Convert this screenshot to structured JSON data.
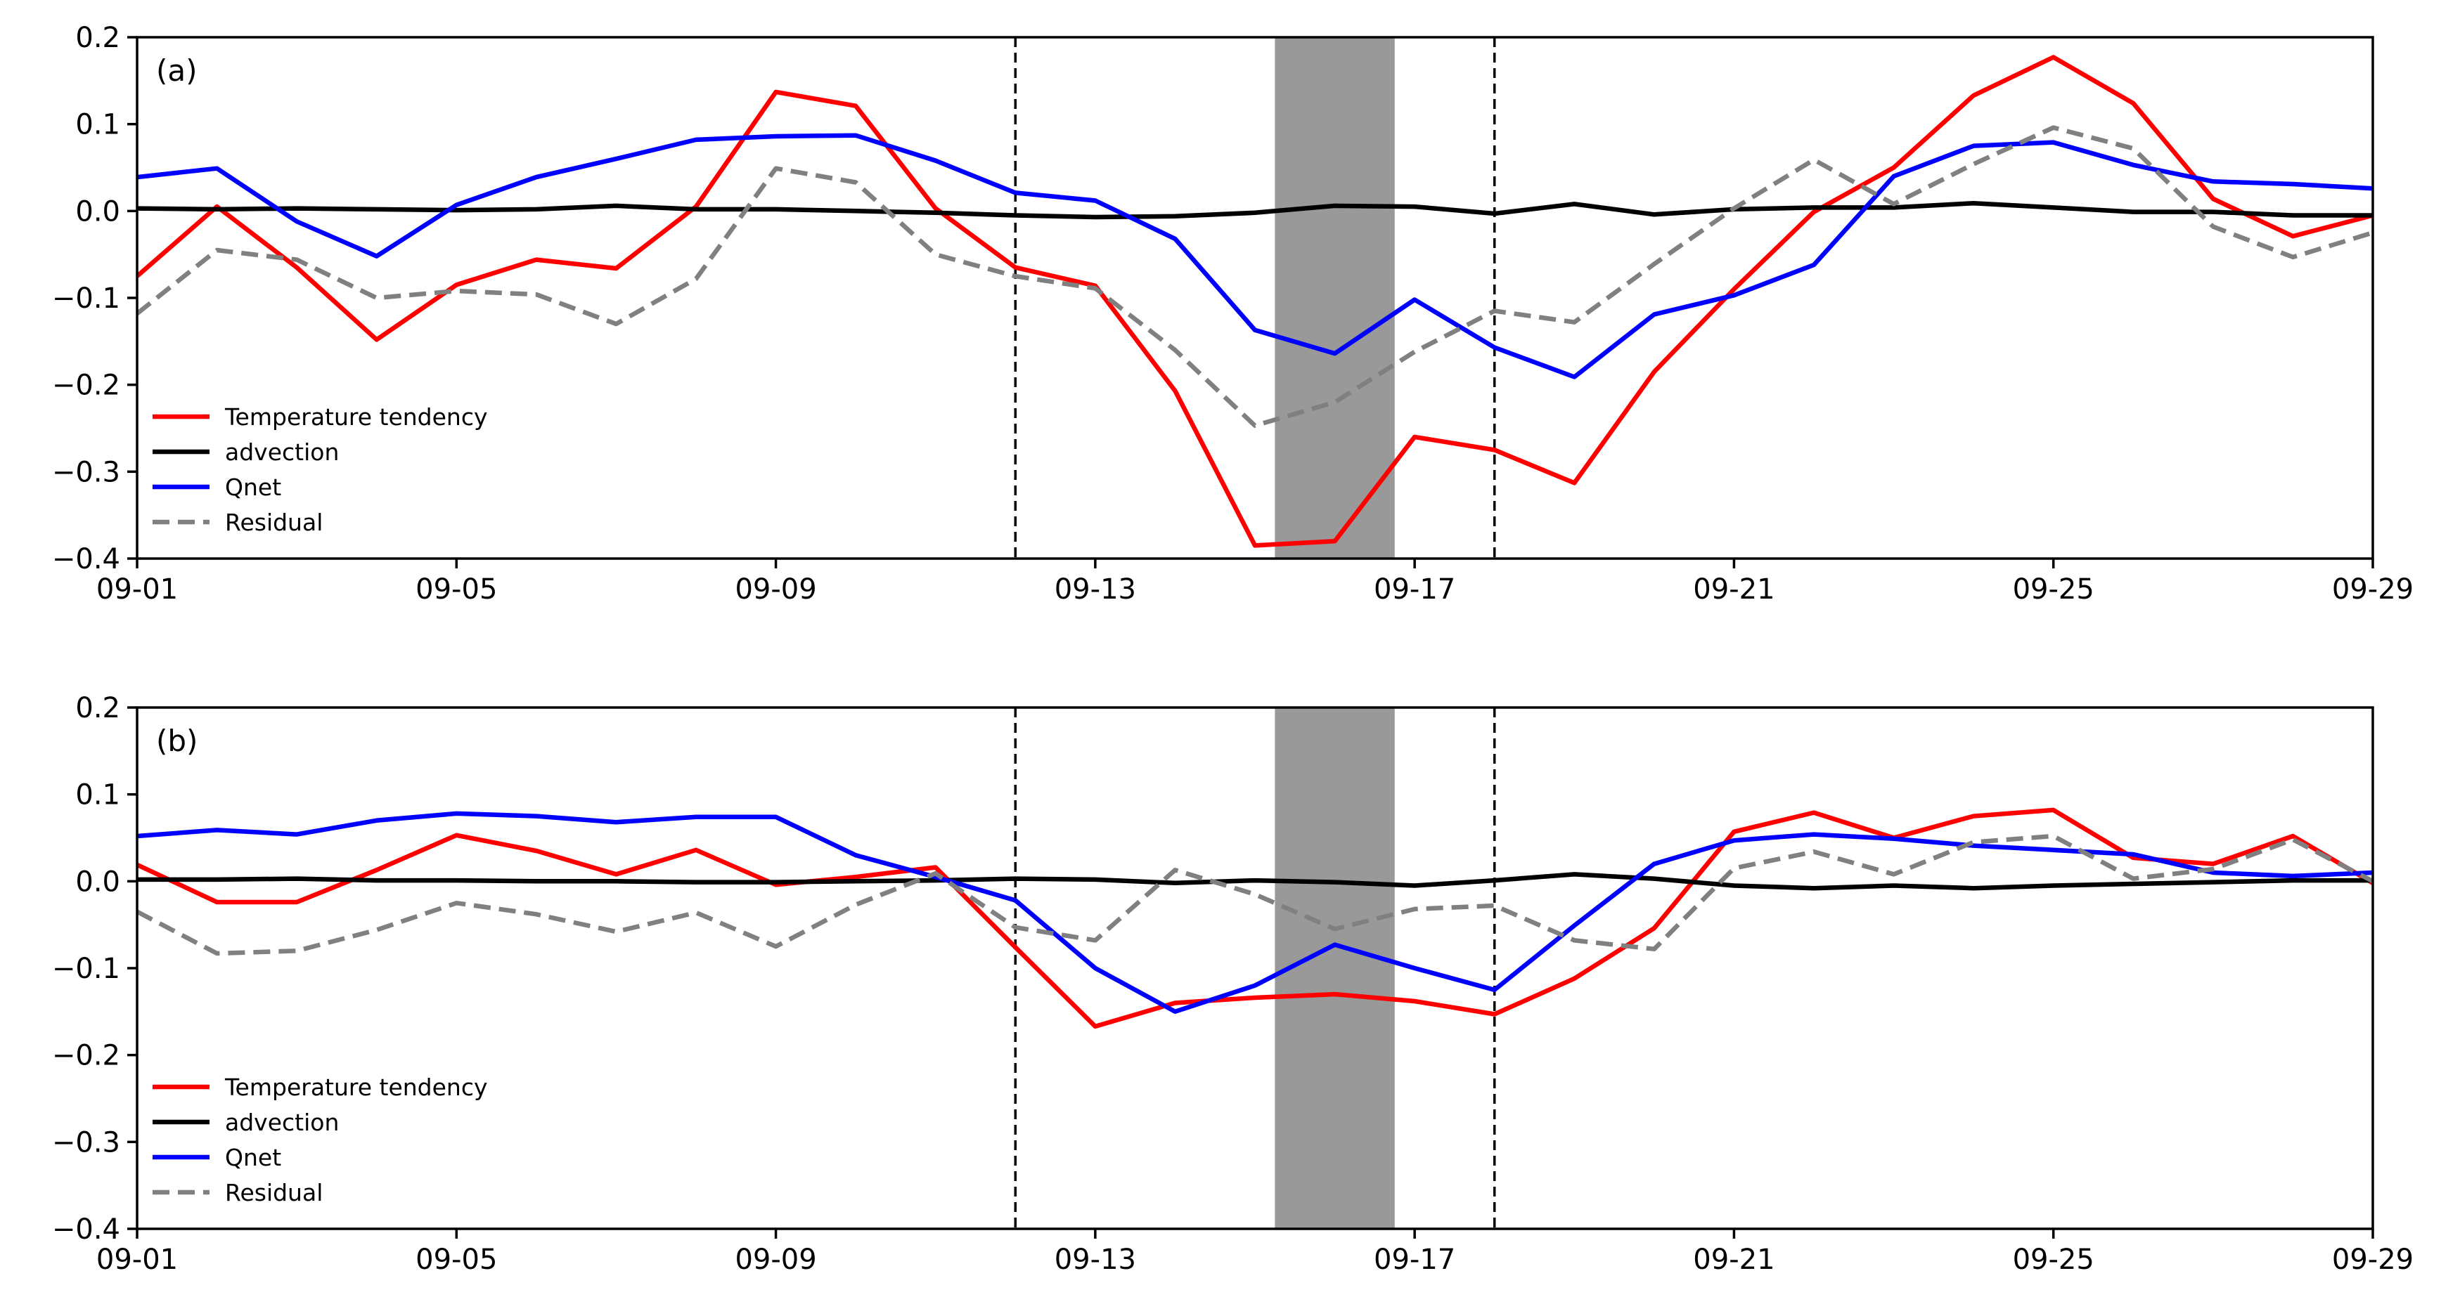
{
  "chart_data": [
    {
      "type": "line",
      "panel_label": "(a)",
      "title": "",
      "xlabel": "",
      "ylabel": "",
      "x": [
        "09-01",
        "09-02",
        "09-03",
        "09-04",
        "09-05",
        "09-06",
        "09-07",
        "09-08",
        "09-09",
        "09-10",
        "09-11",
        "09-12",
        "09-13",
        "09-14",
        "09-15",
        "09-16",
        "09-17",
        "09-18",
        "09-19",
        "09-20",
        "09-21",
        "09-22",
        "09-23",
        "09-24",
        "09-25",
        "09-26",
        "09-27",
        "09-28",
        "09-29"
      ],
      "xticks": [
        "09-01",
        "09-05",
        "09-09",
        "09-13",
        "09-17",
        "09-21",
        "09-25",
        "09-29"
      ],
      "yticks": [
        "0.2",
        "0.1",
        "0.0",
        "−0.1",
        "−0.2",
        "−0.3",
        "−0.4"
      ],
      "ylim": [
        -0.4,
        0.2
      ],
      "vlines": [
        "09-12",
        "09-18"
      ],
      "shaded_span": [
        "09-15.25",
        "09-16.75"
      ],
      "legend_loc": "lower-left",
      "series": [
        {
          "name": "Temperature tendency",
          "color": "#ff0000",
          "dash": "solid",
          "values": [
            -0.075,
            0.005,
            -0.065,
            -0.148,
            -0.085,
            -0.056,
            -0.066,
            0.005,
            0.137,
            0.121,
            0.003,
            -0.065,
            -0.086,
            -0.207,
            -0.385,
            -0.38,
            -0.26,
            -0.275,
            -0.313,
            -0.185,
            -0.09,
            -0.001,
            0.05,
            0.133,
            0.177,
            0.124,
            0.014,
            -0.029,
            -0.005
          ]
        },
        {
          "name": "advection",
          "color": "#000000",
          "dash": "solid",
          "values": [
            0.003,
            0.002,
            0.003,
            0.002,
            0.001,
            0.002,
            0.006,
            0.002,
            0.002,
            0.0,
            -0.002,
            -0.005,
            -0.007,
            -0.006,
            -0.002,
            0.006,
            0.005,
            -0.003,
            0.008,
            -0.004,
            0.002,
            0.004,
            0.004,
            0.009,
            0.004,
            -0.001,
            -0.001,
            -0.005,
            -0.005
          ]
        },
        {
          "name": "Qnet",
          "color": "#0000ff",
          "dash": "solid",
          "values": [
            0.039,
            0.049,
            -0.012,
            -0.052,
            0.007,
            0.039,
            0.06,
            0.082,
            0.086,
            0.087,
            0.058,
            0.021,
            0.012,
            -0.032,
            -0.137,
            -0.164,
            -0.102,
            -0.157,
            -0.191,
            -0.119,
            -0.097,
            -0.062,
            0.04,
            0.075,
            0.079,
            0.053,
            0.034,
            0.031,
            0.026
          ]
        },
        {
          "name": "Residual",
          "color": "#808080",
          "dash": "dashed",
          "values": [
            -0.118,
            -0.045,
            -0.056,
            -0.1,
            -0.092,
            -0.096,
            -0.13,
            -0.078,
            0.049,
            0.033,
            -0.05,
            -0.075,
            -0.089,
            -0.16,
            -0.247,
            -0.22,
            -0.162,
            -0.115,
            -0.128,
            -0.061,
            0.003,
            0.059,
            0.008,
            0.054,
            0.096,
            0.072,
            -0.018,
            -0.053,
            -0.025
          ]
        }
      ]
    },
    {
      "type": "line",
      "panel_label": "(b)",
      "title": "",
      "xlabel": "",
      "ylabel": "",
      "x": [
        "09-01",
        "09-02",
        "09-03",
        "09-04",
        "09-05",
        "09-06",
        "09-07",
        "09-08",
        "09-09",
        "09-10",
        "09-11",
        "09-12",
        "09-13",
        "09-14",
        "09-15",
        "09-16",
        "09-17",
        "09-18",
        "09-19",
        "09-20",
        "09-21",
        "09-22",
        "09-23",
        "09-24",
        "09-25",
        "09-26",
        "09-27",
        "09-28",
        "09-29"
      ],
      "xticks": [
        "09-01",
        "09-05",
        "09-09",
        "09-13",
        "09-17",
        "09-21",
        "09-25",
        "09-29"
      ],
      "yticks": [
        "0.2",
        "0.1",
        "0.0",
        "−0.1",
        "−0.2",
        "−0.3",
        "−0.4"
      ],
      "ylim": [
        -0.4,
        0.2
      ],
      "vlines": [
        "09-12",
        "09-18"
      ],
      "shaded_span": [
        "09-15.25",
        "09-16.75"
      ],
      "legend_loc": "lower-left",
      "series": [
        {
          "name": "Temperature tendency",
          "color": "#ff0000",
          "dash": "solid",
          "values": [
            0.019,
            -0.024,
            -0.024,
            0.013,
            0.053,
            0.035,
            0.008,
            0.036,
            -0.004,
            0.005,
            0.016,
            -0.076,
            -0.167,
            -0.14,
            -0.134,
            -0.13,
            -0.138,
            -0.153,
            -0.112,
            -0.054,
            0.057,
            0.079,
            0.05,
            0.075,
            0.082,
            0.027,
            0.02,
            0.052,
            -0.002
          ]
        },
        {
          "name": "advection",
          "color": "#000000",
          "dash": "solid",
          "values": [
            0.002,
            0.002,
            0.003,
            0.001,
            0.001,
            0.0,
            0.0,
            -0.001,
            -0.001,
            0.0,
            0.001,
            0.003,
            0.002,
            -0.002,
            0.001,
            -0.001,
            -0.005,
            0.001,
            0.008,
            0.003,
            -0.005,
            -0.008,
            -0.005,
            -0.008,
            -0.005,
            -0.003,
            -0.001,
            0.001,
            0.001
          ]
        },
        {
          "name": "Qnet",
          "color": "#0000ff",
          "dash": "solid",
          "values": [
            0.052,
            0.059,
            0.054,
            0.07,
            0.078,
            0.075,
            0.068,
            0.074,
            0.074,
            0.03,
            0.005,
            -0.022,
            -0.1,
            -0.15,
            -0.12,
            -0.073,
            -0.1,
            -0.125,
            -0.051,
            0.02,
            0.047,
            0.054,
            0.049,
            0.041,
            0.036,
            0.031,
            0.01,
            0.006,
            0.01
          ]
        },
        {
          "name": "Residual",
          "color": "#808080",
          "dash": "dashed",
          "values": [
            -0.035,
            -0.083,
            -0.08,
            -0.056,
            -0.025,
            -0.038,
            -0.058,
            -0.036,
            -0.075,
            -0.027,
            0.009,
            -0.053,
            -0.068,
            0.013,
            -0.015,
            -0.055,
            -0.032,
            -0.028,
            -0.068,
            -0.078,
            0.015,
            0.034,
            0.008,
            0.045,
            0.052,
            0.003,
            0.014,
            0.048,
            0.0
          ]
        }
      ]
    }
  ]
}
